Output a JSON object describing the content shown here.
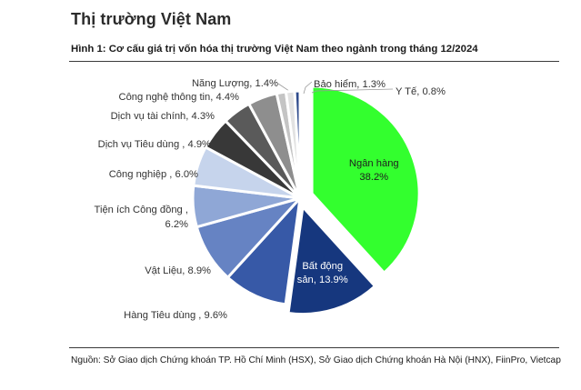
{
  "header": {
    "section_title": "Thị trường Việt Nam",
    "figure_caption": "Hình 1: Cơ cấu giá trị vốn hóa thị trường Việt Nam theo ngành trong tháng 12/2024"
  },
  "footer": {
    "source_note": "Nguồn: Sở Giao dịch Chứng khoán TP. Hồ Chí Minh (HSX), Sở Giao dịch Chứng khoán Hà Nội (HNX), FiinPro, Vietcap"
  },
  "chart_data": {
    "type": "pie",
    "unit": "%",
    "slices": [
      {
        "category": "Ngân hàng",
        "value": 38.2,
        "label_lines": [
          "Ngân hàng",
          "38.2%"
        ],
        "color": "#33ff2e",
        "exploded": true
      },
      {
        "category": "Bất động sản",
        "value": 13.9,
        "label_lines": [
          "Bất động",
          "sản, 13.9%"
        ],
        "color": "#16377e",
        "exploded": true
      },
      {
        "category": "Hàng Tiêu dùng",
        "value": 9.6,
        "label_lines": [
          "Hàng Tiêu dùng , 9.6%"
        ],
        "color": "#3759a7"
      },
      {
        "category": "Vật Liệu",
        "value": 8.9,
        "label_lines": [
          "Vật Liệu, 8.9%"
        ],
        "color": "#6683c3"
      },
      {
        "category": "Tiện ích Công đồng",
        "value": 6.2,
        "label_lines": [
          "Tiện ích Công đồng ,",
          "6.2%"
        ],
        "color": "#8fa7d6"
      },
      {
        "category": "Công nghiệp",
        "value": 6.0,
        "label_lines": [
          "Công nghiệp , 6.0%"
        ],
        "color": "#c6d4ec"
      },
      {
        "category": "Dịch vụ Tiêu dùng",
        "value": 4.9,
        "label_lines": [
          "Dịch vụ Tiêu dùng , 4.9%"
        ],
        "color": "#383838"
      },
      {
        "category": "Dịch vụ tài chính",
        "value": 4.3,
        "label_lines": [
          "Dịch vụ tài chính, 4.3%"
        ],
        "color": "#5a5a5a"
      },
      {
        "category": "Công nghệ thông tin",
        "value": 4.4,
        "label_lines": [
          "Công nghệ thông tin, 4.4%"
        ],
        "color": "#8e8e8e"
      },
      {
        "category": "Năng Lượng",
        "value": 1.4,
        "label_lines": [
          "Năng Lượng, 1.4%"
        ],
        "color": "#c4c4c4"
      },
      {
        "category": "Bảo hiểm",
        "value": 1.3,
        "label_lines": [
          "Bảo hiểm, 1.3%"
        ],
        "color": "#e2e2e2"
      },
      {
        "category": "Y Tế",
        "value": 0.8,
        "label_lines": [
          "Y Tế, 0.8%"
        ],
        "color": "#2f4b8c"
      }
    ],
    "start_angle": "12 o'clock",
    "direction": "clockwise",
    "legend": "none",
    "data_labels": true
  }
}
